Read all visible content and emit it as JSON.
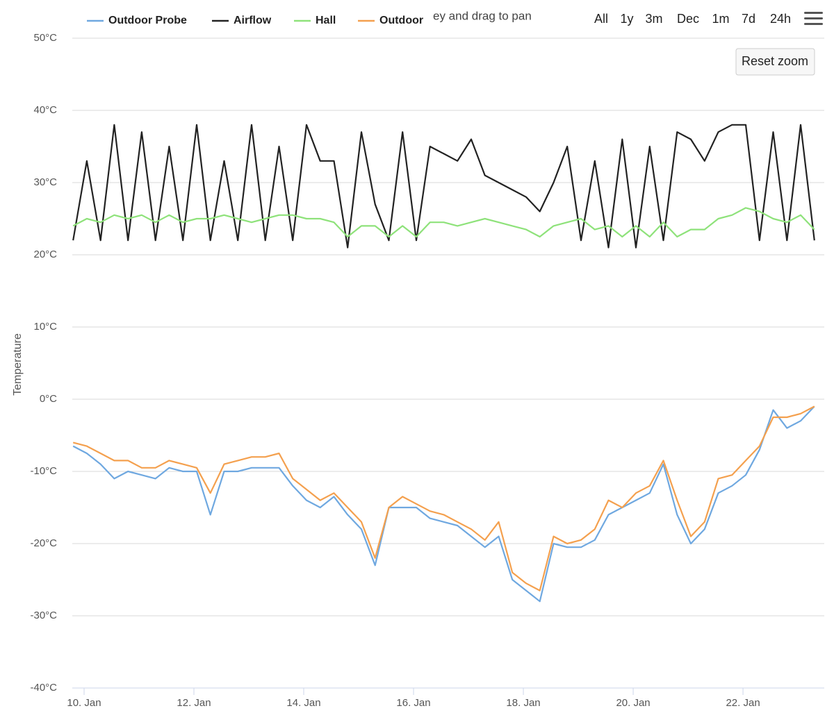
{
  "chart_data": {
    "type": "line",
    "y_axis_title": "Temperature",
    "zoom_hint": "ey and drag to pan",
    "range_selector": [
      "All",
      "1y",
      "3m",
      "Dec",
      "1m",
      "7d",
      "24h"
    ],
    "reset_zoom": "Reset zoom",
    "x": [
      9.8,
      10.05,
      10.3,
      10.55,
      10.8,
      11.05,
      11.3,
      11.55,
      11.8,
      12.05,
      12.3,
      12.55,
      12.8,
      13.05,
      13.3,
      13.55,
      13.8,
      14.05,
      14.3,
      14.55,
      14.8,
      15.05,
      15.3,
      15.55,
      15.8,
      16.05,
      16.3,
      16.55,
      16.8,
      17.05,
      17.3,
      17.55,
      17.8,
      18.05,
      18.3,
      18.55,
      18.8,
      19.05,
      19.3,
      19.55,
      19.8,
      20.05,
      20.3,
      20.55,
      20.8,
      21.05,
      21.3,
      21.55,
      21.8,
      22.05,
      22.3,
      22.55,
      22.8,
      23.05,
      23.3
    ],
    "xlim": [
      9.785,
      23.48
    ],
    "xticks": [
      {
        "value": 10,
        "label": "10. Jan"
      },
      {
        "value": 12,
        "label": "12. Jan"
      },
      {
        "value": 14,
        "label": "14. Jan"
      },
      {
        "value": 16,
        "label": "16. Jan"
      },
      {
        "value": 18,
        "label": "18. Jan"
      },
      {
        "value": 20,
        "label": "20. Jan"
      },
      {
        "value": 22,
        "label": "22. Jan"
      }
    ],
    "ylim": [
      -40,
      50
    ],
    "yticks": [
      {
        "value": -40,
        "label": "-40°C"
      },
      {
        "value": -30,
        "label": "-30°C"
      },
      {
        "value": -20,
        "label": "-20°C"
      },
      {
        "value": -10,
        "label": "-10°C"
      },
      {
        "value": 0,
        "label": "0°C"
      },
      {
        "value": 10,
        "label": "10°C"
      },
      {
        "value": 20,
        "label": "20°C"
      },
      {
        "value": 30,
        "label": "30°C"
      },
      {
        "value": 40,
        "label": "40°C"
      },
      {
        "value": 50,
        "label": "50°C"
      }
    ],
    "grid": true,
    "series": [
      {
        "name": "Outdoor Probe",
        "color": "#6fa8e0",
        "values": [
          -6.5,
          -7.5,
          -9,
          -11,
          -10,
          -10.5,
          -11,
          -9.5,
          -10,
          -10,
          -16,
          -10,
          -10,
          -9.5,
          -9.5,
          -9.5,
          -12,
          -14,
          -15,
          -13.5,
          -16,
          -18,
          -23,
          -15,
          -15,
          -15,
          -16.5,
          -17,
          -17.5,
          -19,
          -20.5,
          -19,
          -25,
          -26.5,
          -28,
          -20,
          -20.5,
          -20.5,
          -19.5,
          -16,
          -15,
          -14,
          -13,
          -9,
          -16,
          -20,
          -18,
          -13,
          -12,
          -10.5,
          -7,
          -1.5,
          -4,
          -3,
          -1
        ]
      },
      {
        "name": "Airflow",
        "color": "#222222",
        "values": [
          22,
          33,
          22,
          38,
          22,
          37,
          22,
          35,
          22,
          38,
          22,
          33,
          22,
          38,
          22,
          35,
          22,
          38,
          33,
          33,
          21,
          37,
          27,
          22,
          37,
          22,
          35,
          34,
          33,
          36,
          31,
          30,
          29,
          28,
          26,
          30,
          35,
          22,
          33,
          21,
          36,
          21,
          35,
          22,
          37,
          36,
          33,
          37,
          38,
          38,
          22,
          37,
          22,
          38,
          22
        ]
      },
      {
        "name": "Hall",
        "color": "#8ee27a",
        "values": [
          24,
          25,
          24.5,
          25.5,
          25,
          25.5,
          24.5,
          25.5,
          24.5,
          25,
          25,
          25.5,
          25,
          24.5,
          25,
          25.5,
          25.5,
          25,
          25,
          24.5,
          22.5,
          24,
          24,
          22.5,
          24,
          22.5,
          24.5,
          24.5,
          24,
          24.5,
          25,
          24.5,
          24,
          23.5,
          22.5,
          24,
          24.5,
          25,
          23.5,
          24,
          22.5,
          24,
          22.5,
          24.5,
          22.5,
          23.5,
          23.5,
          25,
          25.5,
          26.5,
          26,
          25,
          24.5,
          25.5,
          23.5
        ]
      },
      {
        "name": "Outdoor",
        "color": "#f4a04e",
        "values": [
          -6,
          -6.5,
          -7.5,
          -8.5,
          -8.5,
          -9.5,
          -9.5,
          -8.5,
          -9,
          -9.5,
          -13,
          -9,
          -8.5,
          -8,
          -8,
          -7.5,
          -11,
          -12.5,
          -14,
          -13,
          -15,
          -17,
          -22,
          -15,
          -13.5,
          -14.5,
          -15.5,
          -16,
          -17,
          -18,
          -19.5,
          -17,
          -24,
          -25.5,
          -26.5,
          -19,
          -20,
          -19.5,
          -18,
          -14,
          -15,
          -13,
          -12,
          -8.5,
          -14,
          -19,
          -17,
          -11,
          -10.5,
          -8.5,
          -6.5,
          -2.5,
          -2.5,
          -2,
          -1
        ]
      }
    ]
  }
}
